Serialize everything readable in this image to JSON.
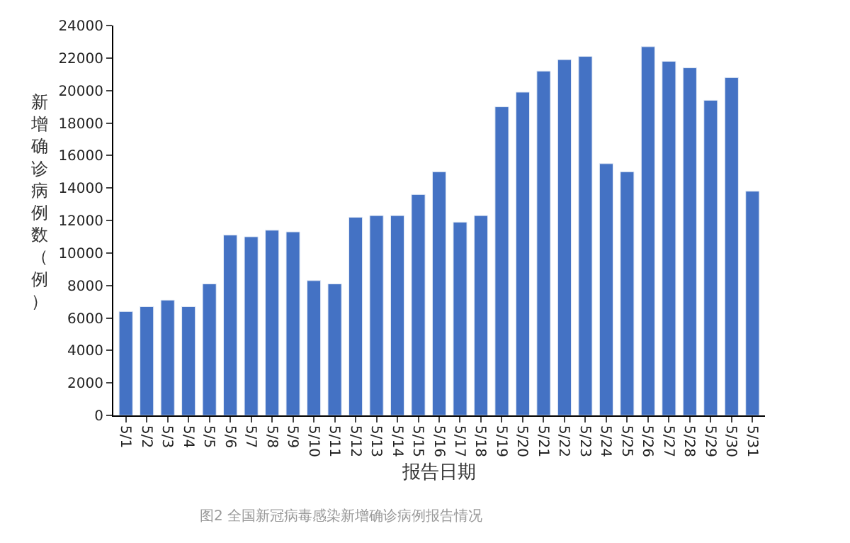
{
  "chart_data": {
    "type": "bar",
    "xlabel": "报告日期",
    "ylabel": "新增确诊病例数（例）",
    "categories": [
      "5/1",
      "5/2",
      "5/3",
      "5/4",
      "5/5",
      "5/6",
      "5/7",
      "5/8",
      "5/9",
      "5/10",
      "5/11",
      "5/12",
      "5/13",
      "5/14",
      "5/15",
      "5/16",
      "5/17",
      "5/18",
      "5/19",
      "5/20",
      "5/21",
      "5/22",
      "5/23",
      "5/24",
      "5/25",
      "5/26",
      "5/27",
      "5/28",
      "5/29",
      "5/30",
      "5/31"
    ],
    "values": [
      6400,
      6700,
      7100,
      6700,
      8100,
      11100,
      11000,
      11400,
      11300,
      8300,
      8100,
      12200,
      12300,
      12300,
      13600,
      15000,
      11900,
      12300,
      19000,
      19900,
      21200,
      21900,
      22100,
      15500,
      15000,
      22700,
      21800,
      21400,
      19400,
      20800,
      13800
    ],
    "color": "#4472c4",
    "ylim": [
      0,
      24000
    ],
    "yticks": [
      0,
      2000,
      4000,
      6000,
      8000,
      10000,
      12000,
      14000,
      16000,
      18000,
      20000,
      22000,
      24000
    ],
    "annotations": [
      "图2 全国新冠病毒感染新增确诊病例报告情况"
    ]
  }
}
